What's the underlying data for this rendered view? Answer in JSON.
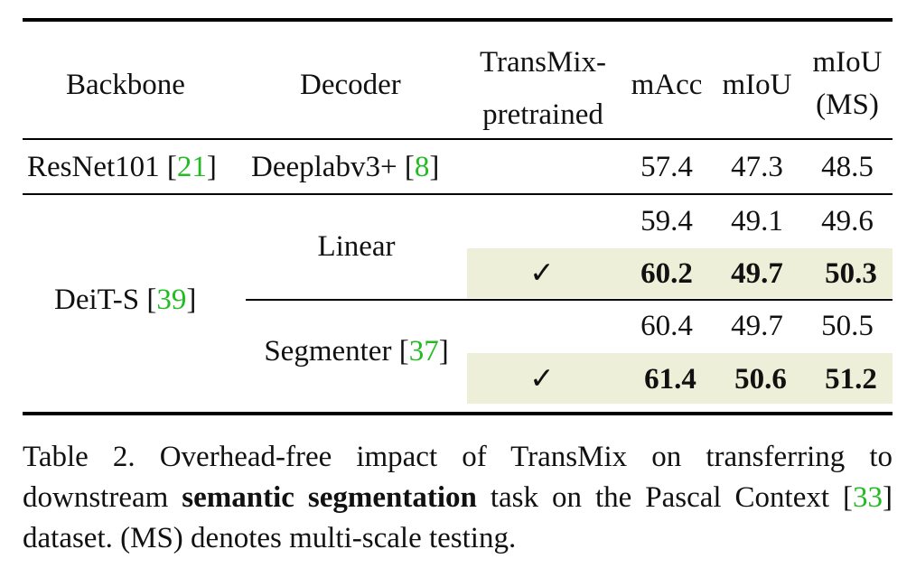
{
  "table": {
    "header": {
      "backbone": "Backbone",
      "decoder": "Decoder",
      "transmix_line1": "TransMix-",
      "transmix_line2": "pretrained",
      "macc": "mAcc",
      "miou": "mIoU",
      "miou_ms_line1": "mIoU",
      "miou_ms_line2": "(MS)"
    },
    "rows": [
      {
        "backbone": "ResNet101",
        "backbone_cite": "21",
        "decoder": "Deeplabv3+",
        "decoder_cite": "8",
        "transmix": "",
        "macc": "57.4",
        "miou": "47.3",
        "miou_ms": "48.5"
      },
      {
        "backbone": "DeiT-S",
        "backbone_cite": "39",
        "decoder": "Linear",
        "decoder_cite": "",
        "transmix": "",
        "macc": "59.4",
        "miou": "49.1",
        "miou_ms": "49.6"
      },
      {
        "backbone": "DeiT-S",
        "backbone_cite": "39",
        "decoder": "Linear",
        "decoder_cite": "",
        "transmix": "✓",
        "macc": "60.2",
        "miou": "49.7",
        "miou_ms": "50.3"
      },
      {
        "backbone": "DeiT-S",
        "backbone_cite": "39",
        "decoder": "Segmenter",
        "decoder_cite": "37",
        "transmix": "",
        "macc": "60.4",
        "miou": "49.7",
        "miou_ms": "50.5"
      },
      {
        "backbone": "DeiT-S",
        "backbone_cite": "39",
        "decoder": "Segmenter",
        "decoder_cite": "37",
        "transmix": "✓",
        "macc": "61.4",
        "miou": "50.6",
        "miou_ms": "51.2"
      }
    ]
  },
  "caption": {
    "part1": "Table 2. Overhead-free impact of TransMix on transferring to downstream ",
    "bold": "semantic segmentation",
    "part2": " task on the Pascal Context [",
    "cite": "33",
    "part3": "] dataset. (MS) denotes multi-scale testing."
  },
  "colors": {
    "highlight": "#eeefd9",
    "citation": "#22bb22"
  }
}
